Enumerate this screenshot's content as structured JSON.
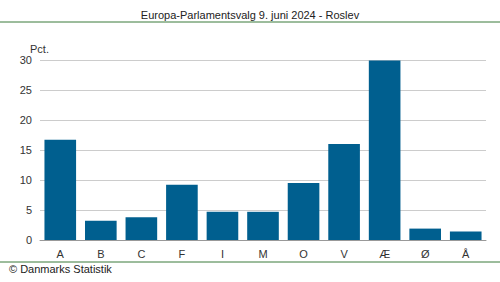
{
  "chart_data": {
    "type": "bar",
    "title": "Europa-Parlamentsvalg 9. juni 2024 - Roslev",
    "ylabel": "Pct.",
    "caption": "© Danmarks Statistik",
    "categories": [
      "A",
      "B",
      "C",
      "F",
      "I",
      "M",
      "O",
      "V",
      "Æ",
      "Ø",
      "Å"
    ],
    "values": [
      16.7,
      3.2,
      3.8,
      9.2,
      4.7,
      4.7,
      9.5,
      16.0,
      29.9,
      1.9,
      1.4
    ],
    "color": "#005f8f",
    "ylim": [
      0,
      30
    ],
    "yticks": [
      0,
      5,
      10,
      15,
      20,
      25,
      30
    ],
    "grid": true
  }
}
